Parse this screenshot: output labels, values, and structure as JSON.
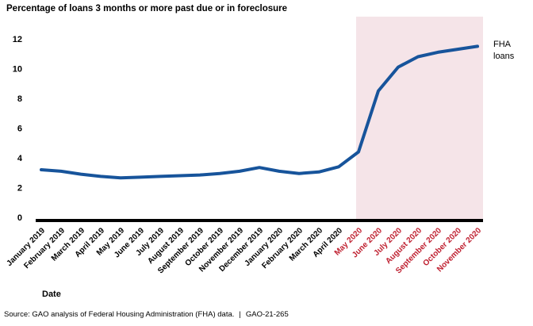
{
  "title": "Percentage of loans 3 months or more past due or in foreclosure",
  "chart_data": {
    "type": "line",
    "title": "Percentage of loans 3 months or more past due or in foreclosure",
    "xlabel": "Date",
    "ylabel": "",
    "ylim": [
      0,
      12
    ],
    "yticks": [
      0,
      2,
      4,
      6,
      8,
      10,
      12
    ],
    "grid": false,
    "legend_position": "right-annotation",
    "categories": [
      "January 2019",
      "February 2019",
      "March 2019",
      "April 2019",
      "May 2019",
      "June 2019",
      "July 2019",
      "August 2019",
      "September 2019",
      "October 2019",
      "November 2019",
      "December 2019",
      "January 2020",
      "February 2020",
      "March 2020",
      "April 2020",
      "May 2020",
      "June 2020",
      "July 2020",
      "August 2020",
      "September 2020",
      "October 2020",
      "November 2020"
    ],
    "series": [
      {
        "name": "FHA loans",
        "values": [
          3.2,
          3.1,
          2.9,
          2.75,
          2.65,
          2.7,
          2.75,
          2.8,
          2.85,
          2.95,
          3.1,
          3.35,
          3.1,
          2.95,
          3.05,
          3.4,
          4.4,
          8.5,
          10.1,
          10.8,
          11.1,
          11.3,
          11.5
        ]
      }
    ],
    "line_color": "#17549b",
    "axis_color": "#000000",
    "highlight": {
      "start_label": "May 2020",
      "end_label": "November 2020",
      "start_index": 16,
      "color": "#f5e4e8",
      "label_color": "#bf2030"
    },
    "annotation": {
      "line1": "FHA",
      "line2": "loans"
    }
  },
  "footer": {
    "source": "Source: GAO analysis of Federal Housing Administration (FHA) data.",
    "separator": "|",
    "report_id": "GAO-21-265"
  }
}
